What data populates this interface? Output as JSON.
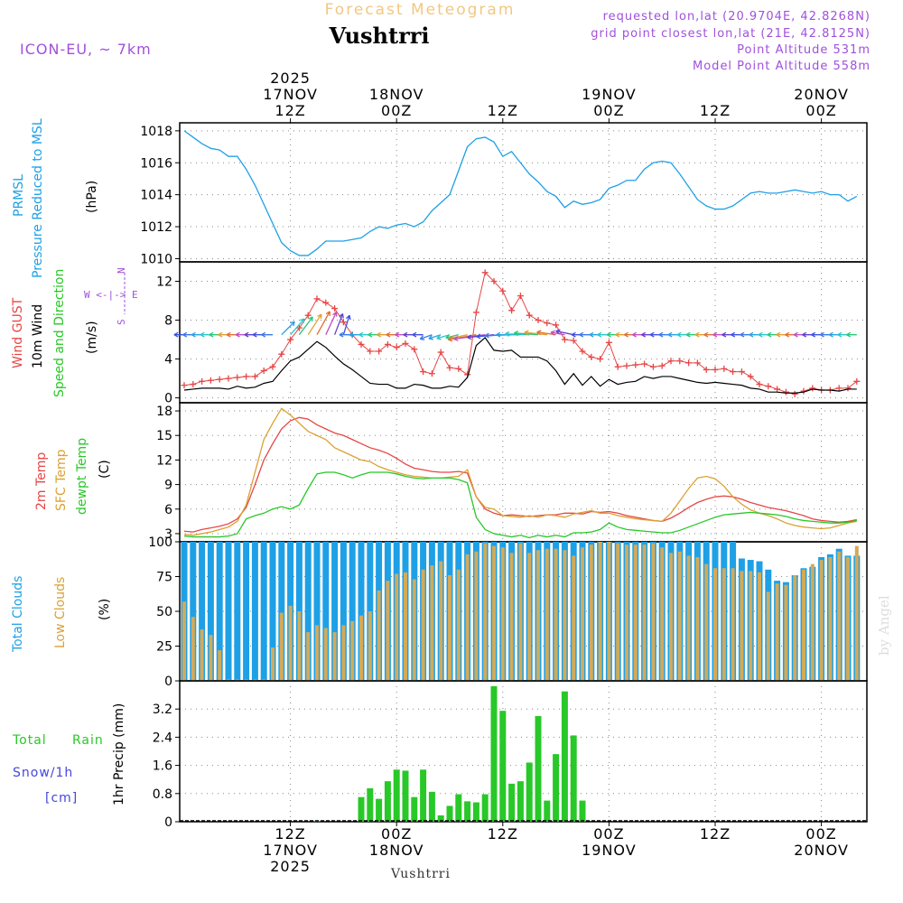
{
  "header": {
    "subtitle": "Forecast Meteogram",
    "location": "Vushtrri",
    "model": "ICON-EU, ~ 7km",
    "requested": "requested lon,lat (20.9704E, 42.8268N)",
    "grid_point": "grid point closest lon,lat (21E, 42.8125N)",
    "point_altitude": "Point Altitude 531m",
    "model_altitude": "Model Point Altitude 558m",
    "footer_location": "Vushtrri",
    "credit": "by Angel"
  },
  "colors": {
    "pressure": "#1ea0e6",
    "gust": "#e64646",
    "wind": "#000000",
    "direction": "#28c828",
    "temp2m": "#e64646",
    "sfc": "#dca032",
    "dewpt": "#28c828",
    "total_clouds": "#1ea0e6",
    "low_clouds": "#d2aa5a",
    "rain": "#28c828",
    "snow": "#4646dc",
    "compass": "#a050dc",
    "header_purple": "#a050dc",
    "subtitle": "#f0c882"
  },
  "time_axis": {
    "top_labels": [
      {
        "l1": "2025",
        "l2": "17NOV",
        "l3": "12Z",
        "h": 12
      },
      {
        "l1": "",
        "l2": "18NOV",
        "l3": "00Z",
        "h": 24
      },
      {
        "l1": "",
        "l2": "",
        "l3": "12Z",
        "h": 36
      },
      {
        "l1": "",
        "l2": "19NOV",
        "l3": "00Z",
        "h": 48
      },
      {
        "l1": "",
        "l2": "",
        "l3": "12Z",
        "h": 60
      },
      {
        "l1": "",
        "l2": "20NOV",
        "l3": "00Z",
        "h": 72
      }
    ],
    "bottom_labels": [
      {
        "l1": "12Z",
        "l2": "17NOV",
        "l3": "2025",
        "h": 12
      },
      {
        "l1": "00Z",
        "l2": "18NOV",
        "l3": "",
        "h": 24
      },
      {
        "l1": "12Z",
        "l2": "",
        "l3": "",
        "h": 36
      },
      {
        "l1": "00Z",
        "l2": "19NOV",
        "l3": "",
        "h": 48
      },
      {
        "l1": "12Z",
        "l2": "",
        "l3": "",
        "h": 60
      },
      {
        "l1": "00Z",
        "l2": "20NOV",
        "l3": "",
        "h": 72
      }
    ]
  },
  "panels": {
    "pressure": {
      "label1": "PRMSL",
      "label2": "Pressure Reduced to MSL",
      "unit": "(hPa)"
    },
    "wind": {
      "label_gust": "Wind GUST",
      "label_wind": "10m Wind",
      "label_dir": "Speed and Direction",
      "unit": "(m/s)",
      "compass_w": "W <-|-> E",
      "compass_n": "N",
      "compass_s": "S"
    },
    "temp": {
      "label_2m": "2m Temp",
      "label_sfc": "SFC Temp",
      "label_dew": "dewpt Temp",
      "unit": "(C)"
    },
    "clouds": {
      "label_total": "Total Clouds",
      "label_low": "Low Clouds",
      "unit": "(%)"
    },
    "precip": {
      "label_total": "Total",
      "label_rain": "Rain",
      "label_snow": "Snow/1h",
      "label_cm": "[cm]",
      "unit": "1hr Precip (mm)"
    }
  },
  "chart_data": [
    {
      "type": "line",
      "title": "PRMSL Pressure Reduced to MSL",
      "ylabel": "(hPa)",
      "x_hours_start": 0.5,
      "x_hours_step": 1.0,
      "ylim": [
        1009.8,
        1018.5
      ],
      "yticks": [
        1010,
        1012,
        1014,
        1016,
        1018
      ],
      "values": [
        1018.0,
        1017.6,
        1017.2,
        1016.9,
        1016.8,
        1016.4,
        1016.4,
        1015.6,
        1014.6,
        1013.4,
        1012.2,
        1011.0,
        1010.5,
        1010.2,
        1010.2,
        1010.6,
        1011.1,
        1011.1,
        1011.1,
        1011.2,
        1011.3,
        1011.7,
        1012.0,
        1011.9,
        1012.1,
        1012.2,
        1012.0,
        1012.3,
        1013.0,
        1013.5,
        1014.0,
        1015.5,
        1017.0,
        1017.5,
        1017.6,
        1017.3,
        1016.4,
        1016.7,
        1016.0,
        1015.3,
        1014.8,
        1014.2,
        1013.9,
        1013.2,
        1013.6,
        1013.4,
        1013.5,
        1013.7,
        1014.4,
        1014.6,
        1014.9,
        1014.9,
        1015.6,
        1016.0,
        1016.1,
        1016.0,
        1015.3,
        1014.5,
        1013.7,
        1013.3,
        1013.1,
        1013.1,
        1013.3,
        1013.7,
        1014.1,
        1014.2,
        1014.1,
        1014.1,
        1014.2,
        1014.3,
        1014.2,
        1014.1,
        1014.2,
        1014.0,
        1014.0,
        1013.6,
        1013.9
      ]
    },
    {
      "type": "line",
      "title": "Wind GUST / 10m Wind Speed and Direction",
      "ylabel": "(m/s)",
      "x_hours_start": 0.5,
      "x_hours_step": 1.0,
      "ylim": [
        -0.5,
        14.0
      ],
      "yticks": [
        0,
        4,
        8,
        12
      ],
      "series": [
        {
          "name": "Wind GUST",
          "values": [
            1.3,
            1.4,
            1.7,
            1.8,
            1.9,
            2.0,
            2.1,
            2.2,
            2.2,
            2.8,
            3.2,
            4.5,
            6.0,
            7.2,
            8.5,
            10.2,
            9.8,
            9.2,
            7.8,
            6.5,
            5.5,
            4.8,
            4.8,
            5.5,
            5.2,
            5.6,
            5.0,
            2.7,
            2.5,
            4.7,
            3.1,
            3.0,
            2.4,
            8.8,
            12.9,
            12.0,
            11.0,
            9.0,
            10.5,
            8.5,
            8.0,
            7.7,
            7.5,
            6.0,
            5.9,
            4.8,
            4.2,
            4.0,
            5.7,
            3.2,
            3.3,
            3.4,
            3.5,
            3.2,
            3.3,
            3.8,
            3.8,
            3.6,
            3.6,
            2.9,
            2.9,
            3.0,
            2.7,
            2.7,
            2.2,
            1.4,
            1.2,
            0.9,
            0.6,
            0.4,
            0.7,
            1.0,
            0.8,
            0.8,
            1.0,
            1.0,
            1.7
          ]
        },
        {
          "name": "10m Wind",
          "values": [
            0.8,
            0.9,
            1.0,
            1.0,
            1.0,
            0.9,
            1.2,
            1.0,
            1.1,
            1.5,
            1.7,
            2.8,
            3.8,
            4.2,
            5.0,
            5.8,
            5.2,
            4.3,
            3.5,
            2.9,
            2.2,
            1.5,
            1.4,
            1.4,
            1.0,
            1.0,
            1.4,
            1.3,
            1.0,
            1.0,
            1.2,
            1.1,
            2.1,
            5.4,
            6.2,
            4.9,
            4.8,
            4.9,
            4.2,
            4.2,
            4.2,
            3.8,
            2.8,
            1.4,
            2.5,
            1.3,
            2.2,
            1.2,
            1.9,
            1.4,
            1.6,
            1.7,
            2.2,
            2.0,
            2.2,
            2.2,
            2.0,
            1.8,
            1.6,
            1.5,
            1.6,
            1.5,
            1.4,
            1.3,
            1.0,
            0.9,
            0.6,
            0.6,
            0.5,
            0.5,
            0.6,
            0.9,
            0.8,
            0.8,
            0.7,
            0.9,
            0.9
          ]
        }
      ],
      "direction_arrows": "shown every hour at ~6.5 m/s, mostly westerly/south-westerly flow"
    },
    {
      "type": "line",
      "title": "2m Temp / SFC Temp / dewpt Temp",
      "ylabel": "(C)",
      "x_hours_start": 0.5,
      "x_hours_step": 1.0,
      "ylim": [
        2.0,
        19.0
      ],
      "yticks": [
        3,
        6,
        9,
        12,
        15,
        18
      ],
      "series": [
        {
          "name": "2m Temp",
          "values": [
            3.3,
            3.2,
            3.5,
            3.7,
            3.9,
            4.2,
            4.8,
            6.2,
            9.0,
            12.0,
            14.0,
            15.8,
            16.8,
            17.2,
            17.0,
            16.3,
            15.8,
            15.3,
            15.0,
            14.5,
            14.0,
            13.5,
            13.2,
            12.8,
            12.2,
            11.5,
            11.0,
            10.8,
            10.6,
            10.5,
            10.5,
            10.6,
            10.4,
            7.5,
            6.0,
            5.5,
            5.2,
            5.3,
            5.2,
            5.1,
            5.2,
            5.3,
            5.3,
            5.5,
            5.5,
            5.4,
            5.7,
            5.6,
            5.7,
            5.5,
            5.2,
            5.0,
            4.8,
            4.6,
            4.5,
            4.9,
            5.5,
            6.2,
            6.8,
            7.2,
            7.5,
            7.6,
            7.5,
            7.2,
            6.8,
            6.5,
            6.2,
            6.0,
            5.8,
            5.5,
            5.2,
            4.8,
            4.6,
            4.5,
            4.4,
            4.5,
            4.7
          ]
        },
        {
          "name": "SFC Temp",
          "values": [
            2.9,
            2.8,
            3.0,
            3.2,
            3.5,
            3.8,
            4.5,
            6.5,
            10.5,
            14.5,
            16.5,
            18.3,
            17.5,
            16.5,
            15.5,
            15.0,
            14.5,
            13.5,
            13.0,
            12.5,
            12.0,
            11.8,
            11.2,
            10.8,
            10.5,
            10.2,
            10.0,
            9.9,
            9.8,
            9.8,
            9.9,
            10.0,
            10.8,
            7.5,
            6.2,
            6.0,
            5.2,
            5.1,
            5.0,
            5.2,
            5.0,
            5.3,
            5.2,
            5.0,
            5.4,
            5.6,
            5.8,
            5.5,
            5.5,
            5.2,
            5.0,
            4.8,
            4.7,
            4.6,
            4.5,
            5.5,
            7.0,
            8.5,
            9.8,
            10.0,
            9.7,
            8.8,
            7.5,
            6.6,
            5.9,
            5.5,
            5.2,
            4.8,
            4.3,
            4.0,
            3.8,
            3.7,
            3.6,
            3.7,
            4.0,
            4.3,
            4.5
          ]
        },
        {
          "name": "dewpt Temp",
          "values": [
            2.7,
            2.6,
            2.6,
            2.6,
            2.6,
            2.7,
            3.0,
            4.8,
            5.2,
            5.5,
            6.0,
            6.3,
            6.0,
            6.5,
            8.5,
            10.3,
            10.5,
            10.5,
            10.2,
            9.8,
            10.2,
            10.5,
            10.5,
            10.5,
            10.3,
            10.0,
            9.8,
            9.7,
            9.8,
            9.8,
            9.8,
            9.6,
            9.2,
            5.0,
            3.5,
            3.0,
            2.8,
            2.6,
            2.8,
            2.5,
            2.8,
            2.6,
            2.8,
            2.6,
            3.1,
            3.1,
            3.2,
            3.5,
            4.3,
            3.8,
            3.5,
            3.4,
            3.3,
            3.2,
            3.1,
            3.1,
            3.4,
            3.8,
            4.2,
            4.6,
            5.0,
            5.3,
            5.4,
            5.5,
            5.6,
            5.5,
            5.4,
            5.3,
            5.1,
            4.8,
            4.6,
            4.5,
            4.4,
            4.3,
            4.3,
            4.4,
            4.6
          ]
        }
      ]
    },
    {
      "type": "bar",
      "title": "Total Clouds / Low Clouds",
      "ylabel": "(%)",
      "x_hours_start": 0.5,
      "x_hours_step": 1.0,
      "ylim": [
        0,
        100
      ],
      "yticks": [
        0,
        25,
        50,
        75,
        100
      ],
      "series": [
        {
          "name": "Total Clouds",
          "values": [
            100,
            100,
            100,
            100,
            100,
            100,
            100,
            100,
            100,
            100,
            100,
            100,
            100,
            100,
            100,
            100,
            100,
            100,
            100,
            100,
            100,
            100,
            100,
            100,
            100,
            100,
            100,
            100,
            100,
            100,
            100,
            100,
            100,
            100,
            100,
            100,
            100,
            100,
            100,
            100,
            100,
            100,
            100,
            100,
            100,
            100,
            100,
            100,
            100,
            100,
            100,
            100,
            100,
            100,
            100,
            100,
            100,
            100,
            100,
            100,
            100,
            100,
            100,
            88,
            87,
            86,
            80,
            72,
            71,
            76,
            81,
            82,
            89,
            91,
            95,
            90,
            90
          ]
        },
        {
          "name": "Low Clouds",
          "values": [
            57,
            46,
            37,
            33,
            22,
            1,
            1,
            1,
            1,
            1,
            24,
            49,
            54,
            50,
            35,
            40,
            38,
            35,
            40,
            43,
            47,
            50,
            65,
            72,
            77,
            78,
            73,
            80,
            83,
            86,
            76,
            80,
            91,
            93,
            99,
            97,
            96,
            92,
            99,
            92,
            94,
            95,
            95,
            94,
            90,
            96,
            98,
            100,
            100,
            99,
            98,
            98,
            98,
            99,
            96,
            92,
            93,
            90,
            89,
            84,
            81,
            81,
            81,
            79,
            79,
            78,
            64,
            70,
            69,
            76,
            80,
            84,
            87,
            89,
            93,
            89,
            97
          ]
        }
      ]
    },
    {
      "type": "bar",
      "title": "Total Rain / Snow 1hr Precip",
      "ylabel": "1hr Precip (mm)",
      "x_hours_start": 0.5,
      "x_hours_step": 1.0,
      "ylim": [
        0,
        4.0
      ],
      "yticks": [
        0,
        0.8,
        1.6,
        2.4,
        3.2
      ],
      "series": [
        {
          "name": "Total Rain",
          "values": [
            0,
            0,
            0,
            0,
            0,
            0,
            0,
            0,
            0,
            0,
            0,
            0,
            0,
            0,
            0,
            0.03,
            0,
            0,
            0,
            0,
            0.7,
            0.95,
            0.65,
            1.15,
            1.48,
            1.45,
            0.7,
            1.48,
            0.85,
            0.18,
            0.45,
            0.78,
            0.58,
            0.55,
            0.78,
            3.85,
            3.15,
            1.08,
            1.15,
            1.68,
            3.0,
            0.6,
            1.92,
            3.7,
            2.45,
            0.6,
            0,
            0,
            0,
            0,
            0,
            0,
            0,
            0,
            0,
            0,
            0,
            0,
            0,
            0,
            0,
            0,
            0,
            0,
            0,
            0,
            0,
            0,
            0,
            0,
            0,
            0,
            0,
            0,
            0,
            0,
            0
          ]
        },
        {
          "name": "Snow/1h",
          "values": []
        }
      ]
    }
  ]
}
